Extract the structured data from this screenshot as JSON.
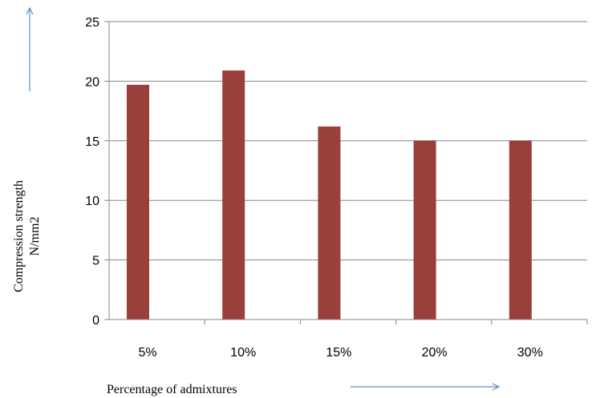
{
  "chart_data": {
    "type": "bar",
    "categories": [
      "5%",
      "10%",
      "15%",
      "20%",
      "30%"
    ],
    "values": [
      19.7,
      20.9,
      16.2,
      15.0,
      15.0
    ],
    "ylim": [
      0,
      25
    ],
    "yticks": [
      0,
      5,
      10,
      15,
      20,
      25
    ],
    "ylabel_line1": "Compression  strength",
    "ylabel_line2": "N/mm2",
    "xlabel": "Percentage of admixtures",
    "grid": "horizontal",
    "legend": "none",
    "colors": {
      "bar": "#9b3f3c",
      "arrow": "#5b8fc7",
      "axis": "#868686"
    }
  }
}
